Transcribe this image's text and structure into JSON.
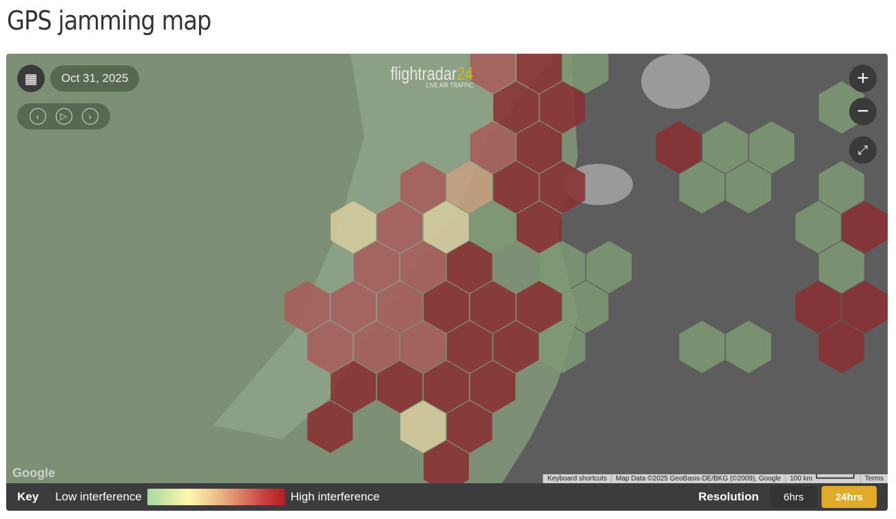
{
  "page_title": "GPS jamming map",
  "controls": {
    "date": "Oct 31, 2025",
    "calendar_icon": "calendar-icon",
    "prev_icon": "chevron-left-icon",
    "play_icon": "play-icon",
    "next_icon": "chevron-right-icon",
    "zoom_in": "+",
    "zoom_out": "−",
    "fullscreen_icon": "expand-icon"
  },
  "logo": {
    "name": "flightradar",
    "number": "24",
    "tagline": "LIVE AIR TRAFFIC"
  },
  "attribution": {
    "keyboard": "Keyboard shortcuts",
    "map_data": "Map Data ©2025 GeoBasis-DE/BKG (©2009), Google",
    "scale": "100 km",
    "terms": "Terms",
    "google": "Google"
  },
  "legend": {
    "key": "Key",
    "low": "Low interference",
    "high": "High interference"
  },
  "resolution": {
    "label": "Resolution",
    "options": [
      "6hrs",
      "24hrs"
    ],
    "selected": "24hrs"
  },
  "colors": {
    "accent": "#e0aa2a",
    "low": "#a8d8a0",
    "high": "#b02020"
  }
}
